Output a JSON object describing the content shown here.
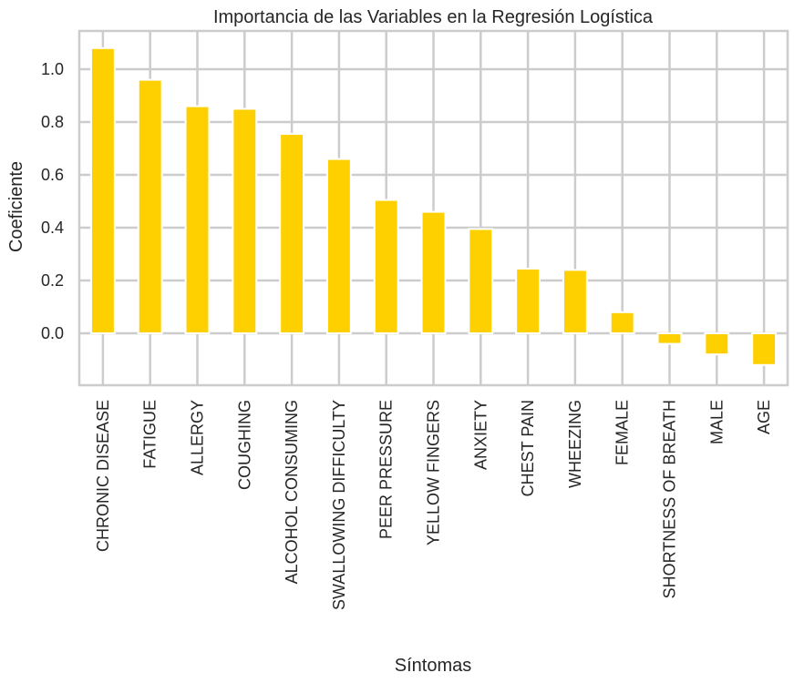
{
  "chart_data": {
    "type": "bar",
    "title": "Importancia de las Variables en la Regresión Logística",
    "xlabel": "Síntomas",
    "ylabel": "Coeficiente",
    "categories": [
      "CHRONIC DISEASE",
      "FATIGUE",
      "ALLERGY",
      "COUGHING",
      "ALCOHOL CONSUMING",
      "SWALLOWING DIFFICULTY",
      "PEER PRESSURE",
      "YELLOW FINGERS",
      "ANXIETY",
      "CHEST PAIN",
      "WHEEZING",
      "FEMALE",
      "SHORTNESS OF BREATH",
      "MALE",
      "AGE"
    ],
    "values": [
      1.08,
      0.96,
      0.86,
      0.85,
      0.755,
      0.66,
      0.505,
      0.46,
      0.395,
      0.245,
      0.24,
      0.08,
      -0.04,
      -0.08,
      -0.12
    ],
    "ylim": [
      -0.12,
      1.08
    ],
    "yticks": [
      "0.0",
      "0.2",
      "0.4",
      "0.6",
      "0.8",
      "1.0"
    ],
    "grid": true,
    "bar_color": "#FFD000",
    "grid_color": "#cccccc"
  }
}
